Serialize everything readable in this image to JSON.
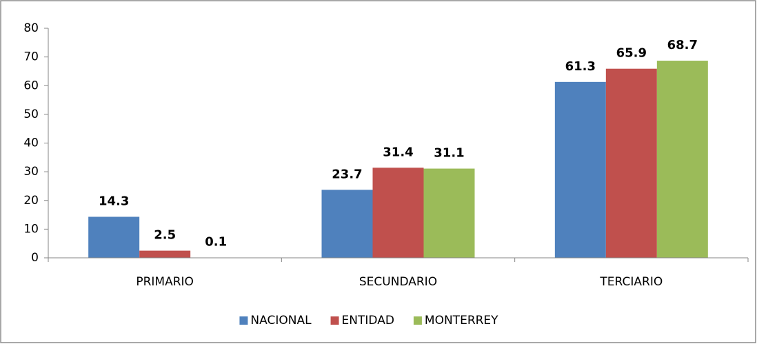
{
  "chart_data": {
    "type": "bar",
    "categories": [
      "PRIMARIO",
      "SECUNDARIO",
      "TERCIARIO"
    ],
    "series": [
      {
        "name": "NACIONAL",
        "color": "#4f81bd",
        "values": [
          14.3,
          23.7,
          61.3
        ]
      },
      {
        "name": "ENTIDAD",
        "color": "#c0504d",
        "values": [
          2.5,
          31.4,
          65.9
        ]
      },
      {
        "name": "MONTERREY",
        "color": "#9bbb59",
        "values": [
          0.1,
          31.1,
          68.7
        ]
      }
    ],
    "ylim": [
      0,
      80
    ],
    "yticks": [
      0,
      10,
      20,
      30,
      40,
      50,
      60,
      70,
      80
    ],
    "grid": false,
    "legend": "bottom"
  }
}
